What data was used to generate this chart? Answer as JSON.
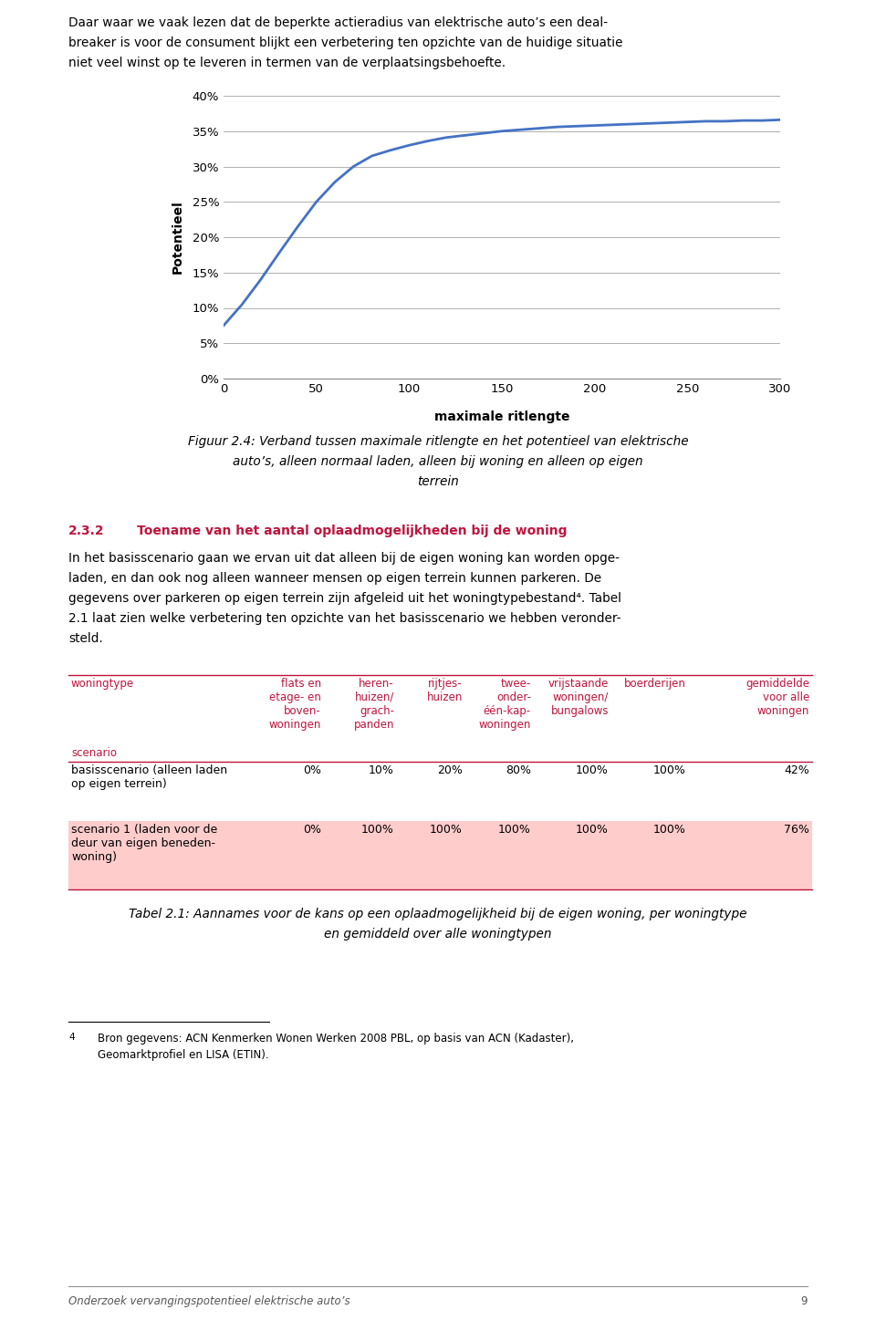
{
  "intro_text_line1": "Daar waar we vaak lezen dat de beperkte actieradius van elektrische auto’s een deal-",
  "intro_text_line2": "breaker is voor de consument blijkt een verbetering ten opzichte van de huidige situatie",
  "intro_text_line3": "niet veel winst op te leveren in termen van de verplaatsingsbehoefte.",
  "chart": {
    "x_values": [
      0,
      10,
      20,
      30,
      40,
      50,
      60,
      70,
      80,
      90,
      100,
      110,
      120,
      130,
      140,
      150,
      160,
      170,
      180,
      190,
      200,
      210,
      220,
      230,
      240,
      250,
      260,
      270,
      280,
      290,
      300
    ],
    "y_values": [
      0.075,
      0.105,
      0.14,
      0.178,
      0.215,
      0.25,
      0.278,
      0.3,
      0.315,
      0.323,
      0.33,
      0.336,
      0.341,
      0.344,
      0.347,
      0.35,
      0.352,
      0.354,
      0.356,
      0.357,
      0.358,
      0.359,
      0.36,
      0.361,
      0.362,
      0.363,
      0.364,
      0.364,
      0.365,
      0.365,
      0.366
    ],
    "line_color": "#4472C4",
    "ylabel": "Potentieel",
    "xlabel": "maximale ritlengte",
    "yticks": [
      0.0,
      0.05,
      0.1,
      0.15,
      0.2,
      0.25,
      0.3,
      0.35,
      0.4
    ],
    "ytick_labels": [
      "0%",
      "5%",
      "10%",
      "15%",
      "20%",
      "25%",
      "30%",
      "35%",
      "40%"
    ],
    "xticks": [
      0,
      50,
      100,
      150,
      200,
      250,
      300
    ],
    "xlim": [
      0,
      300
    ],
    "ylim": [
      0.0,
      0.4
    ],
    "grid_color": "#B0B0B0",
    "line_width": 2.0
  },
  "figure_caption_line1": "Figuur 2.4: Verband tussen maximale ritlengte en het potentieel van elektrische",
  "figure_caption_line2": "auto’s, alleen normaal laden, alleen bij woning en alleen op eigen",
  "figure_caption_line3": "terrein",
  "section_heading_number": "2.3.2",
  "section_heading_text": "Toename van het aantal oplaadmogelijkheden bij de woning",
  "section_heading_color": "#C0143C",
  "section_body_line1": "In het basisscenario gaan we ervan uit dat alleen bij de eigen woning kan worden opge-",
  "section_body_line2": "laden, en dan ook nog alleen wanneer mensen op eigen terrein kunnen parkeren. De",
  "section_body_line3": "gegevens over parkeren op eigen terrein zijn afgeleid uit het woningtypebestand⁴. Tabel",
  "section_body_line4": "2.1 laat zien welke verbetering ten opzichte van het basisscenario we hebben veronder-",
  "section_body_line5": "steld.",
  "table_header_color": "#C0143C",
  "table_row2_bg": "#FFCCCC",
  "col_headers": [
    "flats en\netage- en\nboven-\nwoningen",
    "heren-\nhuizen/\ngrach-\npanden",
    "rijtjes-\nhuizen",
    "twee-\nonder-\néén-kap-\nwoningen",
    "vrijstaande\nwoningen/\nbungalows",
    "boerderijen",
    "gemiddelde\nvoor alle\nwoningen"
  ],
  "row1_label": "basisscenario (alleen laden\nop eigen terrein)",
  "row1_values": [
    "0%",
    "10%",
    "20%",
    "80%",
    "100%",
    "100%",
    "42%"
  ],
  "row2_label": "scenario 1 (laden voor de\ndeur van eigen beneden-\nwoning)",
  "row2_values": [
    "0%",
    "100%",
    "100%",
    "100%",
    "100%",
    "100%",
    "76%"
  ],
  "table_caption_line1": "Tabel 2.1: Aannames voor de kans op een oplaadmogelijkheid bij de eigen woning, per woningtype",
  "table_caption_line2": "en gemiddeld over alle woningtypen",
  "footnote_line1": "Bron gegevens: ACN Kenmerken Wonen Werken 2008 PBL, op basis van ACN (Kadaster),",
  "footnote_line2": "Geomarktprofiel en LISA (ETIN).",
  "footer_text": "Onderzoek vervangingspotentieel elektrische auto’s",
  "footer_page": "9",
  "bg_color": "#FFFFFF",
  "text_color": "#000000"
}
